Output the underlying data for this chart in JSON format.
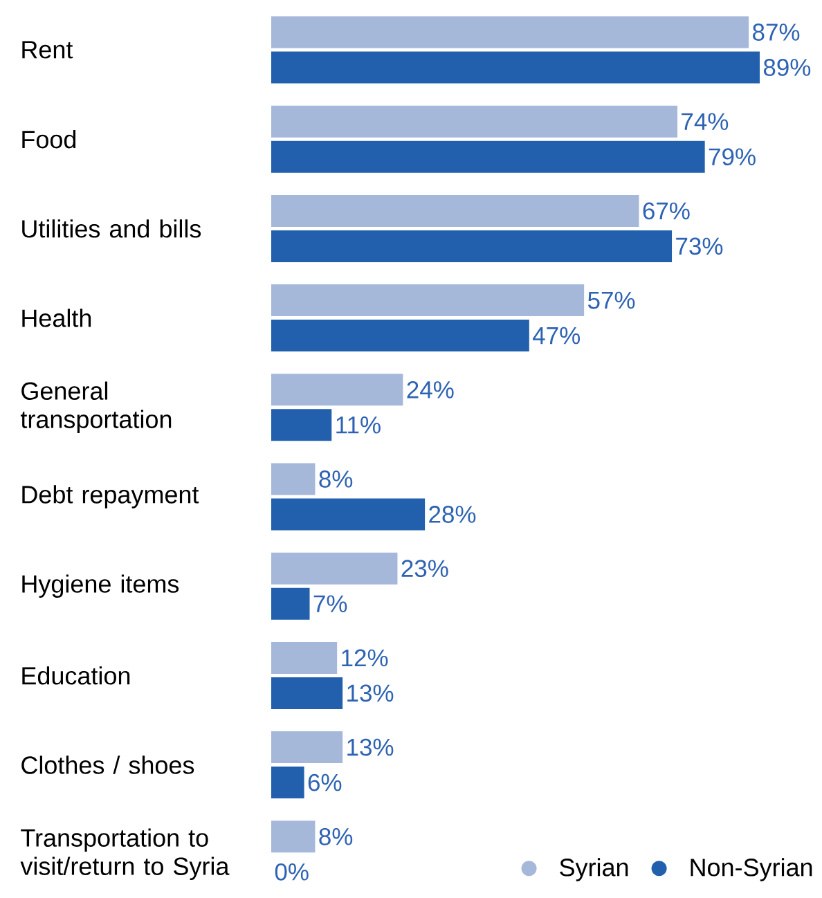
{
  "chart_data": {
    "type": "bar",
    "orientation": "horizontal",
    "categories": [
      "Rent",
      "Food",
      "Utilities and bills",
      "Health",
      "General transportation",
      "Debt repayment",
      "Hygiene items",
      "Education",
      "Clothes / shoes",
      "Transportation to visit/return to Syria"
    ],
    "series": [
      {
        "name": "Syrian",
        "color": "#a6b8da",
        "values": [
          87,
          74,
          67,
          57,
          24,
          8,
          23,
          12,
          13,
          8
        ],
        "value_labels": [
          "87%",
          "74%",
          "67%",
          "57%",
          "24%",
          "8%",
          "23%",
          "12%",
          "13%",
          "8%"
        ]
      },
      {
        "name": "Non-Syrian",
        "color": "#2260ae",
        "values": [
          89,
          79,
          73,
          47,
          11,
          28,
          7,
          13,
          6,
          0
        ],
        "value_labels": [
          "89%",
          "79%",
          "73%",
          "47%",
          "11%",
          "28%",
          "7%",
          "13%",
          "6%",
          "0%"
        ]
      }
    ],
    "legend": "bottom right"
  }
}
